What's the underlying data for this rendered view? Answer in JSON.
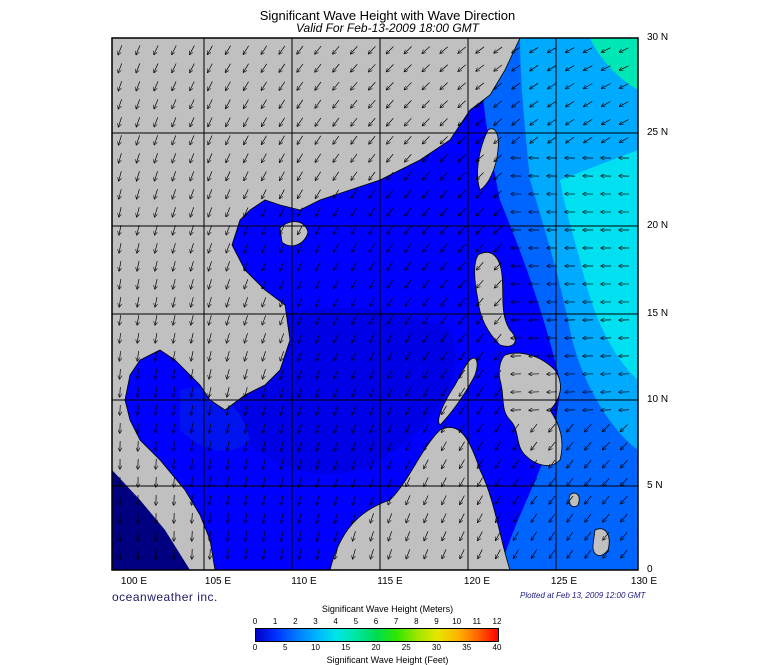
{
  "header": {
    "title": "Significant Wave Height with Wave Direction",
    "subtitle": "Valid For Feb-13-2009 18:00 GMT"
  },
  "map": {
    "lat_labels": [
      "30 N",
      "25 N",
      "20 N",
      "15 N",
      "10 N",
      "5 N",
      "0"
    ],
    "lon_labels": [
      "100 E",
      "105 E",
      "110 E",
      "115 E",
      "120 E",
      "125 E",
      "130 E"
    ],
    "lon_range": [
      100,
      130
    ],
    "lat_range": [
      0,
      30
    ],
    "land_color": "#c0c0c0",
    "grid_color": "#000000"
  },
  "footer": {
    "credit": "oceanweather inc.",
    "plotted": "Plotted at Feb 13, 2009 12:00 GMT"
  },
  "scale": {
    "title_meters": "Significant Wave Height (Meters)",
    "title_feet": "Significant Wave Height (Feet)",
    "meter_ticks": [
      "0",
      "1",
      "2",
      "3",
      "4",
      "5",
      "6",
      "7",
      "8",
      "9",
      "10",
      "11",
      "12"
    ],
    "feet_ticks": [
      "0",
      "5",
      "10",
      "15",
      "20",
      "25",
      "30",
      "35",
      "40"
    ],
    "colors": [
      "#0000c8",
      "#0032ff",
      "#0078ff",
      "#00b4ff",
      "#00e6e6",
      "#00e6a0",
      "#00dc50",
      "#32e600",
      "#a0e600",
      "#e6e600",
      "#ffb400",
      "#ff6400",
      "#ff0000"
    ]
  }
}
